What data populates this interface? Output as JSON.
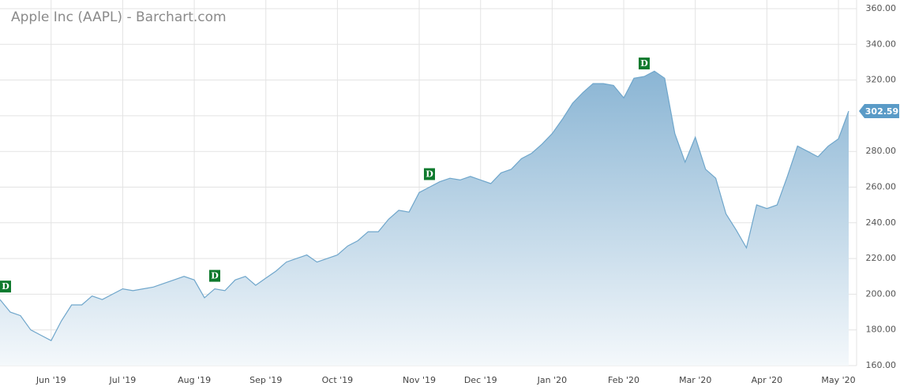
{
  "chart_data": {
    "type": "area",
    "title": "Apple Inc (AAPL) - Barchart.com",
    "categories": [
      null,
      null,
      null,
      null,
      null,
      "Jun '19",
      null,
      null,
      null,
      null,
      null,
      null,
      "Jul '19",
      null,
      null,
      null,
      null,
      null,
      null,
      "Aug '19",
      null,
      null,
      null,
      null,
      null,
      null,
      "Sep '19",
      null,
      null,
      null,
      null,
      null,
      null,
      "Oct '19",
      null,
      null,
      null,
      null,
      null,
      null,
      null,
      "Nov '19",
      null,
      null,
      null,
      null,
      null,
      "Dec '19",
      null,
      null,
      null,
      null,
      null,
      null,
      "Jan '20",
      null,
      null,
      null,
      null,
      null,
      null,
      "Feb '20",
      null,
      null,
      null,
      null,
      null,
      null,
      "Mar '20",
      null,
      null,
      null,
      null,
      null,
      null,
      "Apr '20",
      null,
      null,
      null,
      null,
      null,
      null,
      "May '20",
      null
    ],
    "values": [
      197,
      190,
      188,
      180,
      177,
      174,
      185,
      194,
      194,
      199,
      197,
      200,
      203,
      202,
      203,
      204,
      206,
      208,
      210,
      208,
      198,
      203,
      202,
      208,
      210,
      205,
      209,
      213,
      218,
      220,
      222,
      218,
      220,
      222,
      227,
      230,
      235,
      235,
      242,
      247,
      246,
      257,
      260,
      263,
      265,
      264,
      266,
      264,
      262,
      268,
      270,
      276,
      279,
      284,
      290,
      298,
      307,
      313,
      318,
      318,
      317,
      310,
      321,
      322,
      325,
      321,
      290,
      274,
      288,
      270,
      265,
      245,
      236,
      226,
      250,
      248,
      250,
      266,
      283,
      280,
      277,
      283,
      287,
      302.59
    ],
    "color": "#6fa6cb",
    "ylim": [
      160,
      360
    ],
    "yticks": [
      {
        "value": 160,
        "label": "160.00"
      },
      {
        "value": 180,
        "label": "180.00"
      },
      {
        "value": 200,
        "label": "200.00"
      },
      {
        "value": 220,
        "label": "220.00"
      },
      {
        "value": 240,
        "label": "240.00"
      },
      {
        "value": 260,
        "label": "260.00"
      },
      {
        "value": 280,
        "label": "280.00"
      },
      {
        "value": 300,
        "label": "300.00"
      },
      {
        "value": 320,
        "label": "320.00"
      },
      {
        "value": 340,
        "label": "340.00"
      },
      {
        "value": 360,
        "label": "360.00"
      }
    ],
    "annotations": [
      {
        "label": "D",
        "category_index": 0
      },
      {
        "label": "D",
        "category_index": 21
      },
      {
        "label": "D",
        "category_index": 42
      },
      {
        "label": "D",
        "category_index": 63
      }
    ],
    "grid": true
  }
}
